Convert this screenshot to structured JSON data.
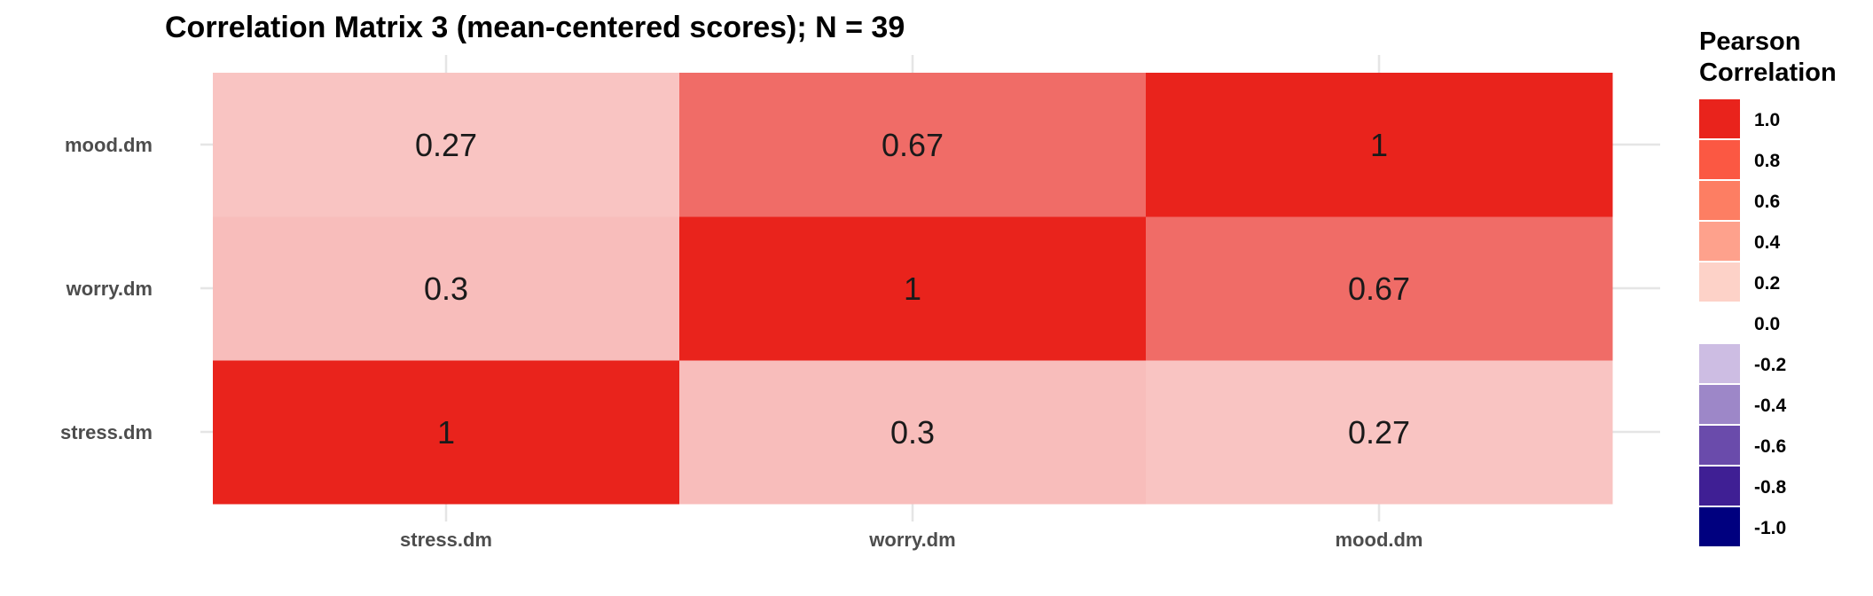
{
  "chart_data": {
    "type": "heatmap",
    "title": "Correlation Matrix 3 (mean-centered scores); N = 39",
    "xlabel": "",
    "ylabel": "",
    "x_categories": [
      "stress.dm",
      "worry.dm",
      "mood.dm"
    ],
    "y_categories": [
      "stress.dm",
      "worry.dm",
      "mood.dm"
    ],
    "matrix": [
      {
        "x": "stress.dm",
        "y": "stress.dm",
        "value": 1,
        "label": "1"
      },
      {
        "x": "worry.dm",
        "y": "stress.dm",
        "value": 0.3,
        "label": "0.3"
      },
      {
        "x": "mood.dm",
        "y": "stress.dm",
        "value": 0.27,
        "label": "0.27"
      },
      {
        "x": "stress.dm",
        "y": "worry.dm",
        "value": 0.3,
        "label": "0.3"
      },
      {
        "x": "worry.dm",
        "y": "worry.dm",
        "value": 1,
        "label": "1"
      },
      {
        "x": "mood.dm",
        "y": "worry.dm",
        "value": 0.67,
        "label": "0.67"
      },
      {
        "x": "stress.dm",
        "y": "mood.dm",
        "value": 0.27,
        "label": "0.27"
      },
      {
        "x": "worry.dm",
        "y": "mood.dm",
        "value": 0.67,
        "label": "0.67"
      },
      {
        "x": "mood.dm",
        "y": "mood.dm",
        "value": 1,
        "label": "1"
      }
    ],
    "color_scale": {
      "min": -1,
      "max": 1,
      "neg_color": "#00007f",
      "mid_color": "#ffffff",
      "pos_color": "#e9231c"
    },
    "legend": {
      "title_lines": [
        "Pearson",
        "Correlation"
      ],
      "placement": "right",
      "bins": [
        {
          "label": "1.0",
          "color": "#e9231c",
          "value": 1.0
        },
        {
          "label": "0.8",
          "color": "#fb5843",
          "value": 0.8
        },
        {
          "label": "0.6",
          "color": "#fd7e63",
          "value": 0.6
        },
        {
          "label": "0.4",
          "color": "#fea18c",
          "value": 0.4
        },
        {
          "label": "0.2",
          "color": "#fdd2c8",
          "value": 0.2
        },
        {
          "label": "0.0",
          "color": "#ffffff",
          "value": 0.0
        },
        {
          "label": "-0.2",
          "color": "#cdbde3",
          "value": -0.2
        },
        {
          "label": "-0.4",
          "color": "#9d87c8",
          "value": -0.4
        },
        {
          "label": "-0.6",
          "color": "#6a4bab",
          "value": -0.6
        },
        {
          "label": "-0.8",
          "color": "#3f1f94",
          "value": -0.8
        },
        {
          "label": "-1.0",
          "color": "#00007f",
          "value": -1.0
        }
      ]
    },
    "grid": true
  }
}
